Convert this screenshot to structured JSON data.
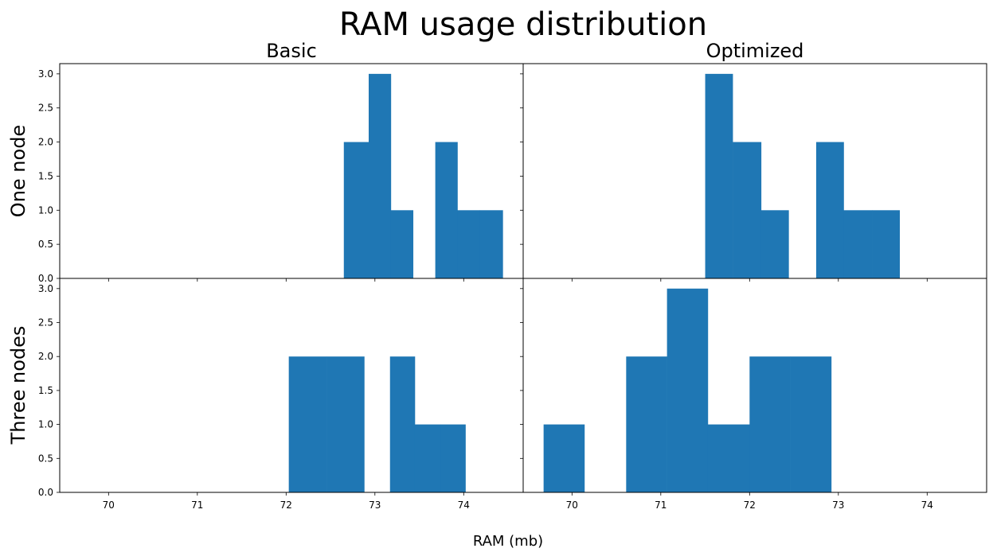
{
  "figure": {
    "title": "RAM usage distribution",
    "xlabel": "RAM (mb)",
    "column_titles": [
      "Basic",
      "Optimized"
    ],
    "row_labels": [
      "One node",
      "Three nodes"
    ]
  },
  "chart_data": [
    {
      "type": "bar",
      "title": "Basic",
      "row": "One node",
      "color": "#1f77b4",
      "xlim": [
        69.45,
        74.67
      ],
      "ylim": [
        0,
        3.15
      ],
      "xticks": [
        70,
        71,
        72,
        73,
        74
      ],
      "yticks": [
        0.0,
        0.5,
        1.0,
        1.5,
        2.0,
        2.5,
        3.0
      ],
      "bins": [
        {
          "x0": 72.65,
          "x1": 72.93,
          "value": 2
        },
        {
          "x0": 72.93,
          "x1": 73.18,
          "value": 3
        },
        {
          "x0": 73.18,
          "x1": 73.43,
          "value": 1
        },
        {
          "x0": 73.68,
          "x1": 73.93,
          "value": 2
        },
        {
          "x0": 73.93,
          "x1": 74.18,
          "value": 1
        },
        {
          "x0": 74.18,
          "x1": 74.44,
          "value": 1
        }
      ]
    },
    {
      "type": "bar",
      "title": "Optimized",
      "row": "One node",
      "color": "#1f77b4",
      "xlim": [
        69.45,
        74.67
      ],
      "ylim": [
        0,
        3.15
      ],
      "xticks": [
        70,
        71,
        72,
        73,
        74
      ],
      "yticks": [
        0.0,
        0.5,
        1.0,
        1.5,
        2.0,
        2.5,
        3.0
      ],
      "bins": [
        {
          "x0": 71.5,
          "x1": 71.81,
          "value": 3
        },
        {
          "x0": 71.81,
          "x1": 72.13,
          "value": 2
        },
        {
          "x0": 72.13,
          "x1": 72.44,
          "value": 1
        },
        {
          "x0": 72.75,
          "x1": 73.06,
          "value": 2
        },
        {
          "x0": 73.06,
          "x1": 73.38,
          "value": 1
        },
        {
          "x0": 73.38,
          "x1": 73.69,
          "value": 1
        }
      ]
    },
    {
      "type": "bar",
      "title": "",
      "row": "Three nodes",
      "color": "#1f77b4",
      "xlim": [
        69.45,
        74.67
      ],
      "ylim": [
        0,
        3.15
      ],
      "xticks": [
        70,
        71,
        72,
        73,
        74
      ],
      "yticks": [
        0.0,
        0.5,
        1.0,
        1.5,
        2.0,
        2.5,
        3.0
      ],
      "bins": [
        {
          "x0": 72.03,
          "x1": 72.46,
          "value": 2
        },
        {
          "x0": 72.46,
          "x1": 72.88,
          "value": 2
        },
        {
          "x0": 73.17,
          "x1": 73.45,
          "value": 2
        },
        {
          "x0": 73.45,
          "x1": 73.74,
          "value": 1
        },
        {
          "x0": 73.74,
          "x1": 74.02,
          "value": 1
        }
      ]
    },
    {
      "type": "bar",
      "title": "",
      "row": "Three nodes",
      "color": "#1f77b4",
      "xlim": [
        69.45,
        74.67
      ],
      "ylim": [
        0,
        3.15
      ],
      "xticks": [
        70,
        71,
        72,
        73,
        74
      ],
      "yticks": [
        0.0,
        0.5,
        1.0,
        1.5,
        2.0,
        2.5,
        3.0
      ],
      "bins": [
        {
          "x0": 69.68,
          "x1": 70.14,
          "value": 1
        },
        {
          "x0": 70.61,
          "x1": 71.07,
          "value": 2
        },
        {
          "x0": 71.07,
          "x1": 71.53,
          "value": 3
        },
        {
          "x0": 71.53,
          "x1": 72.0,
          "value": 1
        },
        {
          "x0": 72.0,
          "x1": 72.46,
          "value": 2
        },
        {
          "x0": 72.46,
          "x1": 72.92,
          "value": 2
        }
      ]
    }
  ]
}
